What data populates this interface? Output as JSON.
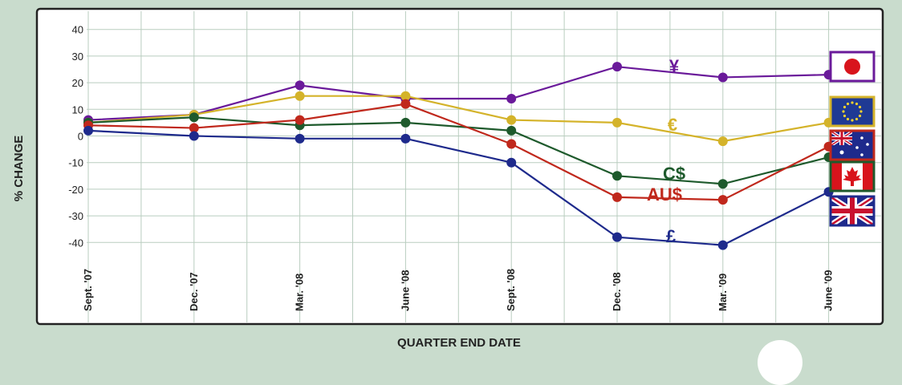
{
  "chart_data": {
    "type": "line",
    "xlabel": "QUARTER END DATE",
    "ylabel": "% CHANGE",
    "categories": [
      "Sept. '07",
      "Dec. '07",
      "Mar. '08",
      "June '08",
      "Sept. '08",
      "Dec. '08",
      "Mar. '09",
      "June '09"
    ],
    "yticks": [
      40,
      30,
      20,
      10,
      0,
      -10,
      -20,
      -30,
      -40
    ],
    "ylim": [
      -44,
      42
    ],
    "grid": true,
    "series": [
      {
        "label": "¥",
        "color": "#6a1a9a",
        "values": [
          6,
          8,
          19,
          14,
          14,
          26,
          22,
          23
        ],
        "flag": "japan"
      },
      {
        "label": "€",
        "color": "#d4b32a",
        "values": [
          5,
          8,
          15,
          15,
          6,
          5,
          -2,
          5
        ],
        "flag": "eu"
      },
      {
        "label": "C$",
        "color": "#1e5a2c",
        "values": [
          5,
          7,
          4,
          5,
          2,
          -15,
          -18,
          -8
        ],
        "flag": "canada"
      },
      {
        "label": "AU$",
        "color": "#c0281c",
        "values": [
          4,
          3,
          6,
          12,
          -3,
          -23,
          -24,
          -4
        ],
        "flag": "australia"
      },
      {
        "label": "£",
        "color": "#1e2a8c",
        "values": [
          2,
          0,
          -1,
          -1,
          -10,
          -38,
          -41,
          -21
        ],
        "flag": "uk"
      }
    ]
  }
}
